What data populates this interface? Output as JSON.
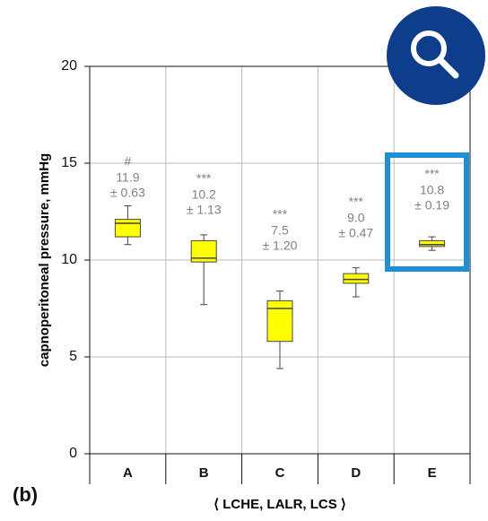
{
  "chart_data": {
    "type": "box",
    "panel_label": "(b)",
    "ylabel": "capnoperitoneal pressure, mmHg",
    "xlabel": "⟨ LCHE, LALR, LCS ⟩",
    "categories": [
      "A",
      "B",
      "C",
      "D",
      "E"
    ],
    "boxes": [
      {
        "whislo": 10.8,
        "q1": 11.2,
        "med": 11.9,
        "q3": 12.1,
        "whishi": 12.8
      },
      {
        "whislo": 7.7,
        "q1": 9.9,
        "med": 10.1,
        "q3": 11.0,
        "whishi": 11.3
      },
      {
        "whislo": 4.4,
        "q1": 5.8,
        "med": 7.5,
        "q3": 7.9,
        "whishi": 8.4
      },
      {
        "whislo": 8.1,
        "q1": 8.8,
        "med": 9.0,
        "q3": 9.3,
        "whishi": 9.6
      },
      {
        "whislo": 10.5,
        "q1": 10.7,
        "med": 10.8,
        "q3": 11.0,
        "whishi": 11.2
      }
    ],
    "annotations": [
      {
        "significance": "#",
        "mean": "11.9",
        "sd": "± 0.63"
      },
      {
        "significance": "***",
        "mean": "10.2",
        "sd": "± 1.13"
      },
      {
        "significance": "***",
        "mean": "7.5",
        "sd": "± 1.20"
      },
      {
        "significance": "***",
        "mean": "9.0",
        "sd": "± 0.47"
      },
      {
        "significance": "***",
        "mean": "10.8",
        "sd": "± 0.19"
      }
    ],
    "color": "#ffff00",
    "ylim": [
      0,
      20
    ],
    "yticks": [
      0,
      5,
      10,
      15,
      20
    ],
    "grid": true
  }
}
